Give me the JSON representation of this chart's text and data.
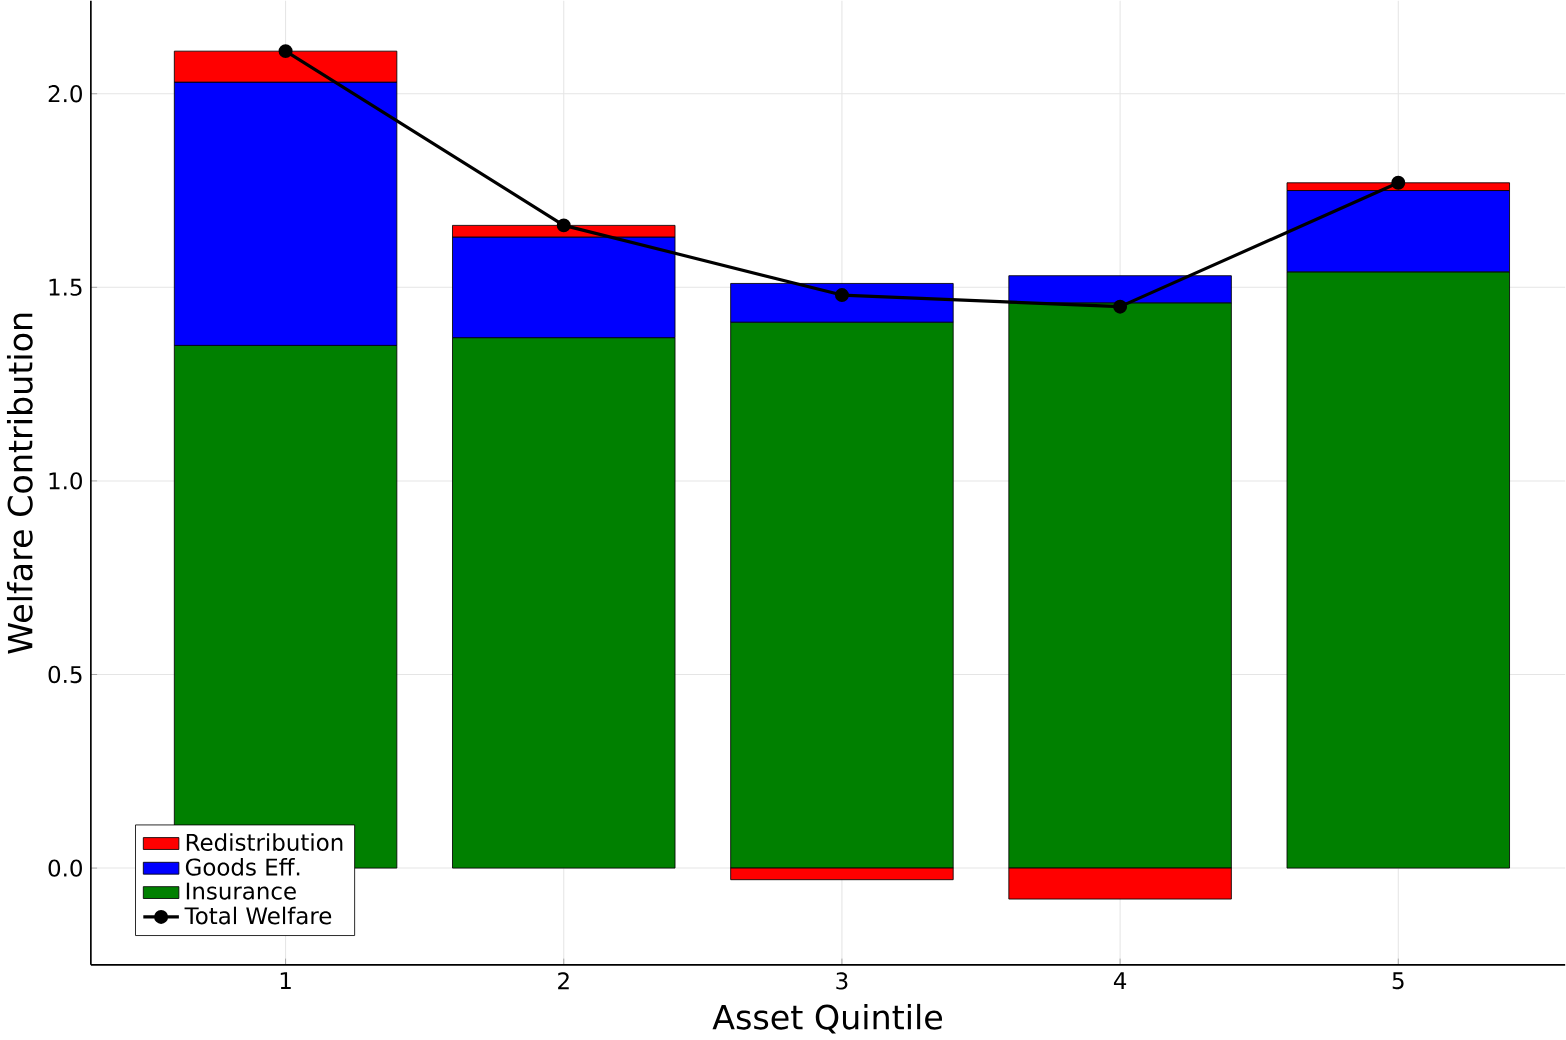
{
  "chart_data": {
    "type": "bar",
    "stacked": true,
    "xlabel": "Asset Quintile",
    "ylabel": "Welfare Contribution",
    "categories": [
      "1",
      "2",
      "3",
      "4",
      "5"
    ],
    "series": [
      {
        "name": "Insurance",
        "color": "#008000",
        "values": [
          1.35,
          1.37,
          1.41,
          1.46,
          1.54
        ]
      },
      {
        "name": "Goods Eff.",
        "color": "#0000ff",
        "values": [
          0.68,
          0.26,
          0.1,
          0.07,
          0.21
        ]
      },
      {
        "name": "Redistribution",
        "color": "#ff0000",
        "values": [
          0.08,
          0.03,
          -0.03,
          -0.08,
          0.02
        ]
      },
      {
        "name": "Total Welfare",
        "type": "line",
        "color": "#000000",
        "marker": "circle",
        "values": [
          2.11,
          1.66,
          1.48,
          1.45,
          1.77
        ]
      }
    ],
    "ylim": [
      -0.25,
      2.24
    ],
    "yticks": [
      {
        "value": 0,
        "label": "0.0"
      },
      {
        "value": 0.5,
        "label": "0.5"
      },
      {
        "value": 1,
        "label": "1.0"
      },
      {
        "value": 1.5,
        "label": "1.5"
      },
      {
        "value": 2,
        "label": "2.0"
      }
    ],
    "grid": true,
    "legend": "bottom left"
  }
}
